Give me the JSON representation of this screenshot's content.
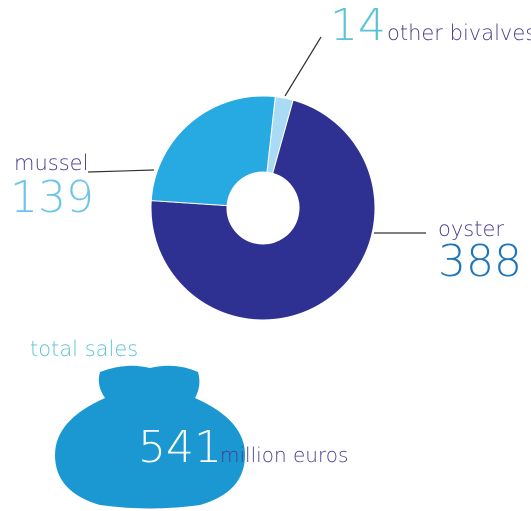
{
  "chart_data": {
    "type": "donut",
    "categories": [
      "other bivalves",
      "oyster",
      "mussel"
    ],
    "values": [
      14,
      388,
      139
    ],
    "colors": [
      "#a9dcf4",
      "#2e3092",
      "#27a9e1"
    ],
    "label_colors": [
      "#5ac3d6",
      "#1c74bb",
      "#6cc5e8"
    ],
    "total": {
      "label": "total sales",
      "value": 541,
      "unit": "million euros"
    }
  }
}
